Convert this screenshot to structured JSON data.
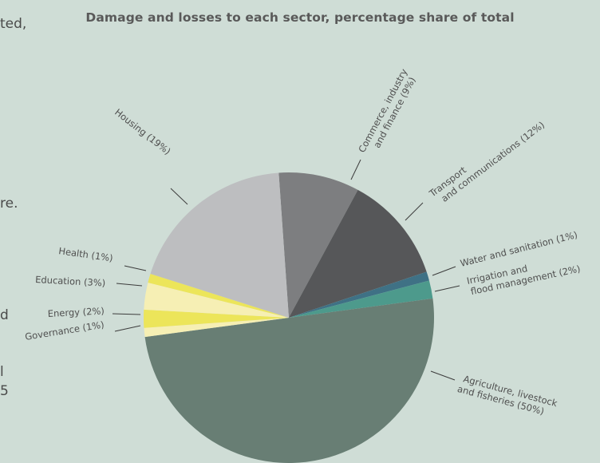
{
  "chart_data": {
    "type": "pie",
    "title": "Damage and losses to each sector, percentage share of total",
    "slices": [
      {
        "label": "Commerce, industry and finance",
        "value": 9,
        "pct_label": "9%",
        "color": "#7d7e80"
      },
      {
        "label": "Transport and communications",
        "value": 12,
        "pct_label": "12%",
        "color": "#565759"
      },
      {
        "label": "Water and sanitation",
        "value": 1,
        "pct_label": "1%",
        "color": "#3f7185"
      },
      {
        "label": "Irrigation and flood management",
        "value": 2,
        "pct_label": "2%",
        "color": "#4d9a8c"
      },
      {
        "label": "Agriculture, livestock and fisheries",
        "value": 50,
        "pct_label": "50%",
        "color": "#687e74"
      },
      {
        "label": "Governance",
        "value": 1,
        "pct_label": "1%",
        "color": "#f6efb4"
      },
      {
        "label": "Energy",
        "value": 2,
        "pct_label": "2%",
        "color": "#ece55a"
      },
      {
        "label": "Education",
        "value": 3,
        "pct_label": "3%",
        "color": "#f6efb4"
      },
      {
        "label": "Health",
        "value": 1,
        "pct_label": "1%",
        "color": "#ece55a"
      },
      {
        "label": "Housing",
        "value": 19,
        "pct_label": "19%",
        "color": "#bdbec0"
      }
    ]
  },
  "background_text": [
    "ted,",
    "re.",
    "d",
    "l",
    "5"
  ],
  "labels": {
    "commerce": [
      "Commerce, industry",
      "and finance (9%)"
    ],
    "transport": [
      "Transport",
      "and communications (12%)"
    ],
    "water": [
      "Water and sanitation (1%)"
    ],
    "irrigation": [
      "Irrigation and",
      "flood management (2%)"
    ],
    "agriculture": [
      "Agriculture, livestock",
      "and fisheries (50%)"
    ],
    "housing": [
      "Housing (19%)"
    ],
    "health": [
      "Health (1%)"
    ],
    "education": [
      "Education (3%)"
    ],
    "energy": [
      "Energy (2%)"
    ],
    "governance": [
      "Governance (1%)"
    ]
  },
  "colors": {
    "background": "#cfddd6",
    "text": "#4f4f4f"
  }
}
